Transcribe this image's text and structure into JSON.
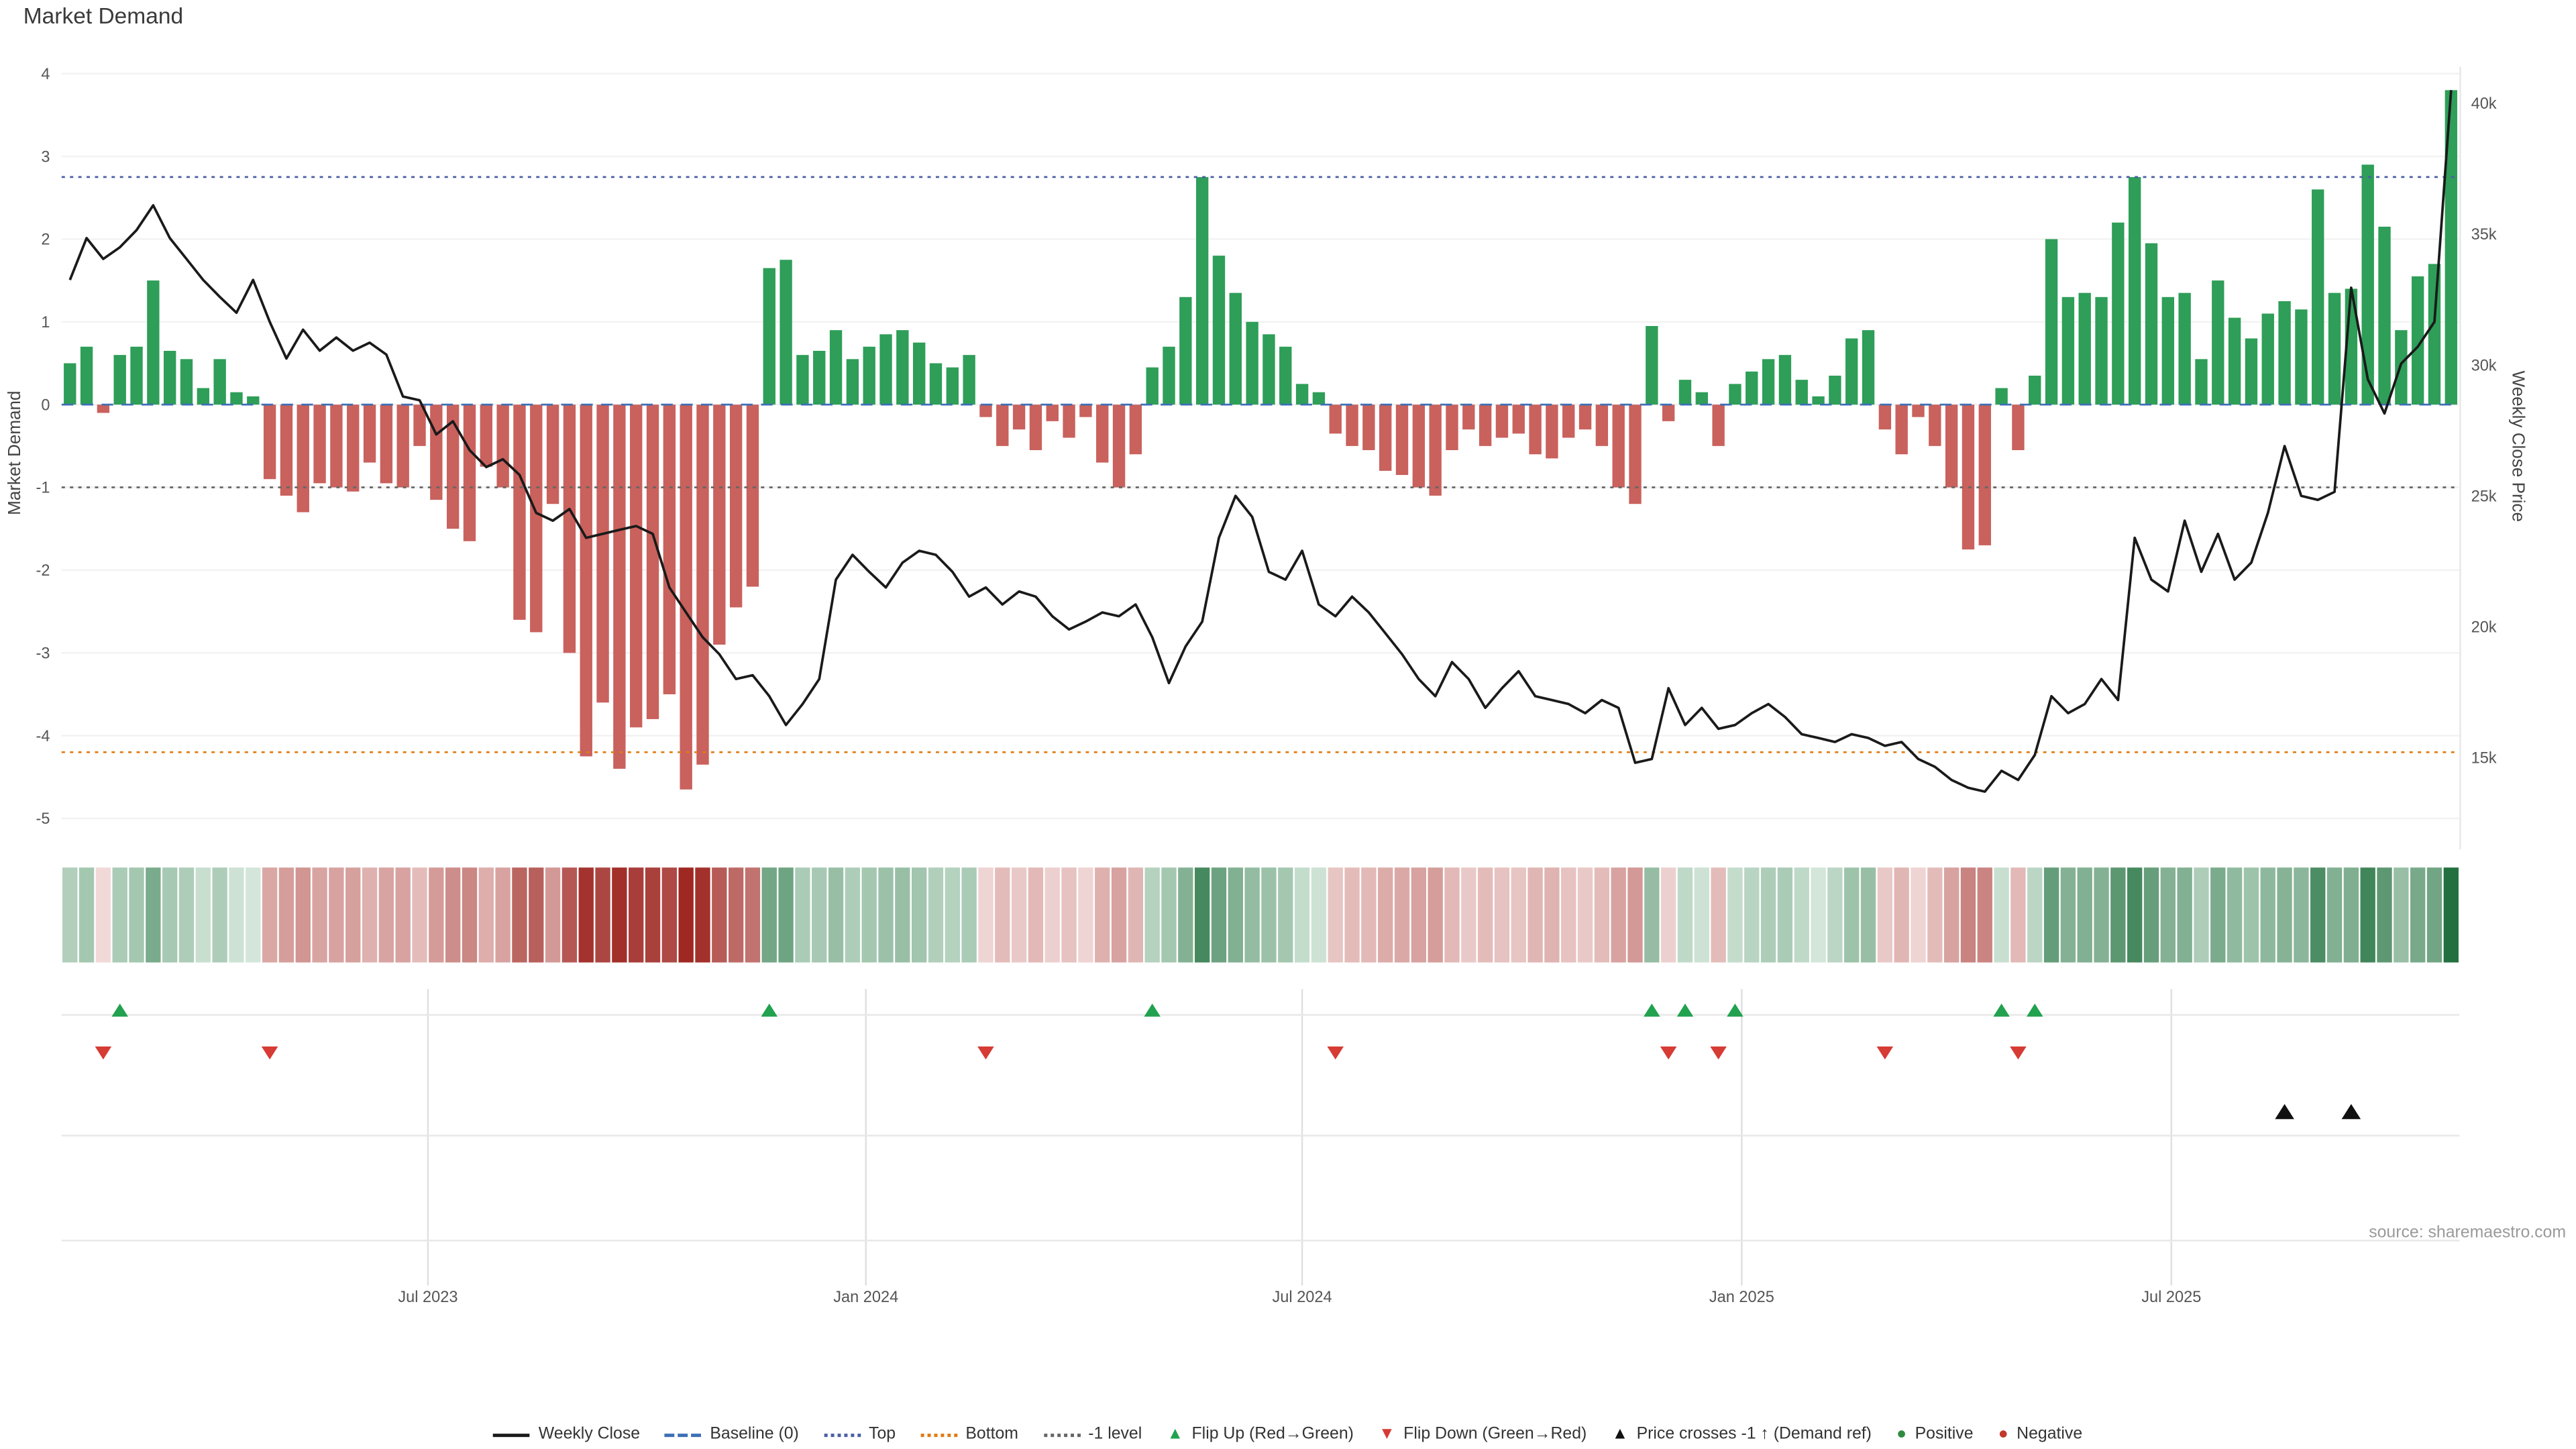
{
  "title": "Market Demand",
  "source": "source: sharemaestro.com",
  "axes": {
    "left_label": "Market Demand",
    "right_label": "Weekly Close Price",
    "left_ticks": [
      4,
      3,
      2,
      1,
      0,
      -1,
      -2,
      -3,
      -4,
      -5
    ],
    "right_ticks": [
      "40k",
      "35k",
      "30k",
      "25k",
      "20k",
      "15k"
    ],
    "right_tick_values": [
      40000,
      35000,
      30000,
      25000,
      20000,
      15000
    ],
    "x_ticks": [
      "Jul 2023",
      "Jan 2024",
      "Jul 2024",
      "Jan 2025",
      "Jul 2025"
    ],
    "x_tick_positions": [
      21.5,
      47.8,
      74.0,
      100.4,
      126.2
    ]
  },
  "colors": {
    "positive_bar": "#2e9e58",
    "negative_bar": "#c9615d",
    "price_line": "#1a1a1a",
    "baseline": "#3d6fb5",
    "top_line": "#4a5fa5",
    "bottom_line": "#e07b12",
    "minus1_line": "#666666",
    "flip_up": "#22a14f",
    "flip_down": "#d63b34",
    "price_cross": "#111111"
  },
  "legend": [
    {
      "glyph": "line",
      "color": "#1a1a1a",
      "label": "Weekly Close"
    },
    {
      "glyph": "dash",
      "color": "#3d6fb5",
      "label": "Baseline (0)"
    },
    {
      "glyph": "dot-line",
      "color": "#4a5fa5",
      "label": "Top"
    },
    {
      "glyph": "dot-line",
      "color": "#e07b12",
      "label": "Bottom"
    },
    {
      "glyph": "dot-line",
      "color": "#666666",
      "label": "-1 level"
    },
    {
      "glyph": "tri-up",
      "color": "#22a14f",
      "label": "Flip Up (Red→Green)"
    },
    {
      "glyph": "tri-down",
      "color": "#d63b34",
      "label": "Flip Down (Green→Red)"
    },
    {
      "glyph": "tri-up",
      "color": "#111111",
      "label": "Price crosses -1 ↑ (Demand ref)"
    },
    {
      "glyph": "circle",
      "color": "#2e8b3e",
      "label": "Positive"
    },
    {
      "glyph": "circle",
      "color": "#c0392b",
      "label": "Negative"
    }
  ],
  "chart_data": {
    "type": "bar+line",
    "title": "Market Demand",
    "x_unit": "week",
    "approx_start": "2023-02",
    "n_points": 144,
    "ylim_left": [
      -5,
      4
    ],
    "ylim_right": [
      15000,
      40000
    ],
    "reference_lines": [
      {
        "name": "baseline",
        "value": 0,
        "style": "dashed",
        "color": "#3d6fb5"
      },
      {
        "name": "top",
        "value": 2.75,
        "style": "dotted",
        "color": "#4a5fa5"
      },
      {
        "name": "bottom",
        "value": -4.2,
        "style": "dotted",
        "color": "#e07b12"
      },
      {
        "name": "minus1",
        "value": -1,
        "style": "dotted",
        "color": "#666666"
      }
    ],
    "demand": [
      0.5,
      0.7,
      -0.1,
      0.6,
      0.7,
      1.5,
      0.65,
      0.55,
      0.2,
      0.55,
      0.15,
      0.1,
      -0.9,
      -1.1,
      -1.3,
      -0.95,
      -1.0,
      -1.05,
      -0.7,
      -0.95,
      -1.0,
      -0.5,
      -1.15,
      -1.5,
      -1.65,
      -0.75,
      -1.0,
      -2.6,
      -2.75,
      -1.2,
      -3.0,
      -4.25,
      -3.6,
      -4.4,
      -3.9,
      -3.8,
      -3.5,
      -4.65,
      -4.35,
      -2.9,
      -2.45,
      -2.2,
      1.65,
      1.75,
      0.6,
      0.65,
      0.9,
      0.55,
      0.7,
      0.85,
      0.9,
      0.75,
      0.5,
      0.45,
      0.6,
      -0.15,
      -0.5,
      -0.3,
      -0.55,
      -0.2,
      -0.4,
      -0.15,
      -0.7,
      -1.0,
      -0.6,
      0.45,
      0.7,
      1.3,
      2.75,
      1.8,
      1.35,
      1.0,
      0.85,
      0.7,
      0.25,
      0.15,
      -0.35,
      -0.5,
      -0.55,
      -0.8,
      -0.85,
      -1.0,
      -1.1,
      -0.55,
      -0.3,
      -0.5,
      -0.4,
      -0.35,
      -0.6,
      -0.65,
      -0.4,
      -0.3,
      -0.5,
      -1.0,
      -1.2,
      0.95,
      -0.2,
      0.3,
      0.15,
      -0.5,
      0.25,
      0.4,
      0.55,
      0.6,
      0.3,
      0.1,
      0.35,
      0.8,
      0.9,
      -0.3,
      -0.6,
      -0.15,
      -0.5,
      -1.0,
      -1.75,
      -1.7,
      0.2,
      -0.55,
      0.35,
      2.0,
      1.3,
      1.35,
      1.3,
      2.2,
      2.75,
      1.95,
      1.3,
      1.35,
      0.55,
      1.5,
      1.05,
      0.8,
      1.1,
      1.25,
      1.15,
      2.6,
      1.35,
      1.4,
      2.9,
      2.15,
      0.9,
      1.55,
      1.7,
      3.8
    ],
    "close": [
      33250,
      34850,
      34050,
      34500,
      35150,
      36100,
      34850,
      34050,
      33250,
      32600,
      32000,
      33250,
      31650,
      30250,
      31350,
      30550,
      31050,
      30550,
      30850,
      30400,
      28800,
      28650,
      27350,
      27850,
      26750,
      26100,
      26400,
      25800,
      24350,
      24050,
      24500,
      23400,
      23550,
      23700,
      23850,
      23550,
      21500,
      20550,
      19600,
      18950,
      18000,
      18150,
      17350,
      16250,
      17050,
      18000,
      21800,
      22750,
      22100,
      21500,
      22450,
      22900,
      22750,
      22100,
      21150,
      21500,
      20850,
      21350,
      21150,
      20400,
      19900,
      20200,
      20550,
      20400,
      20850,
      19600,
      17850,
      19250,
      20200,
      23400,
      25000,
      24200,
      22100,
      21800,
      22900,
      20850,
      20400,
      21150,
      20550,
      19750,
      18950,
      18000,
      17350,
      18650,
      18000,
      16900,
      17650,
      18300,
      17350,
      17200,
      17050,
      16700,
      17200,
      16900,
      14800,
      14950,
      17650,
      16250,
      16900,
      16100,
      16250,
      16700,
      17050,
      16550,
      15900,
      15750,
      15600,
      15900,
      15750,
      15450,
      15600,
      14950,
      14650,
      14150,
      13850,
      13700,
      14500,
      14150,
      15100,
      17350,
      16700,
      17050,
      18000,
      17200,
      23400,
      21800,
      21350,
      24050,
      22100,
      23550,
      21800,
      22450,
      24350,
      26900,
      25000,
      24850,
      25150,
      32950,
      29450,
      28150,
      30050,
      30700,
      31650,
      40500
    ],
    "markers": {
      "flip_up": [
        3,
        42,
        65,
        95,
        97,
        100,
        116,
        118
      ],
      "flip_down": [
        2,
        12,
        55,
        76,
        96,
        99,
        109,
        117
      ],
      "price_cross_up": [
        133,
        137
      ]
    }
  }
}
